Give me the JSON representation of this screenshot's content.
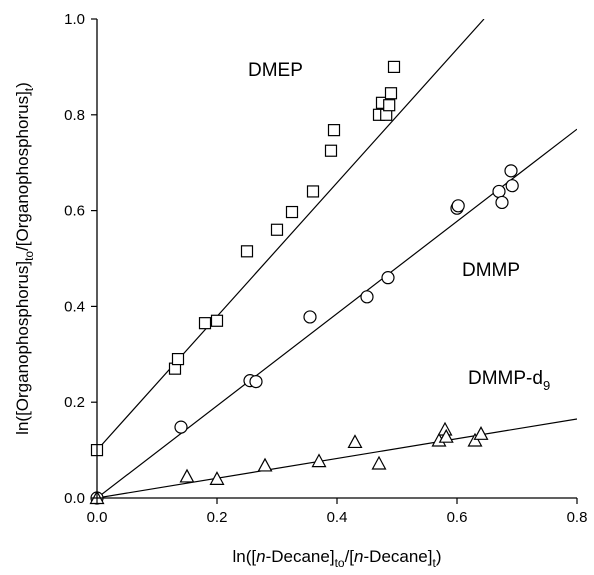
{
  "chart_data": {
    "type": "scatter",
    "xlabel": {
      "pre": "ln([",
      "italic": "n",
      "mid": "-Decane]",
      "sub1": "to",
      "mid2": "/[",
      "italic2": "n",
      "mid3": "-Decane]",
      "sub2": "t",
      "post": ")"
    },
    "ylabel": {
      "pre": "ln([Organophosphorus]",
      "sub1": "to",
      "mid": "/[Organophosphorus]",
      "sub2": "t",
      "post": ")"
    },
    "xlim": [
      0,
      0.8
    ],
    "ylim": [
      0,
      1.0
    ],
    "xticks": [
      0.0,
      0.2,
      0.4,
      0.6,
      0.8
    ],
    "xtick_labels": [
      "0.0",
      "0.2",
      "0.4",
      "0.6",
      "0.8"
    ],
    "yticks": [
      0.0,
      0.2,
      0.4,
      0.6,
      0.8,
      1.0
    ],
    "ytick_labels": [
      "0.0",
      "0.2",
      "0.4",
      "0.6",
      "0.8",
      "1.0"
    ],
    "grid": false,
    "series": [
      {
        "name": "DMEP",
        "label_text": "DMEP",
        "marker": "square",
        "fit": {
          "x": [
            0.0,
            0.645
          ],
          "y": [
            0.1,
            1.0
          ]
        },
        "points": [
          [
            0.0,
            0.1
          ],
          [
            0.13,
            0.27
          ],
          [
            0.135,
            0.29
          ],
          [
            0.18,
            0.365
          ],
          [
            0.2,
            0.37
          ],
          [
            0.25,
            0.515
          ],
          [
            0.3,
            0.56
          ],
          [
            0.325,
            0.597
          ],
          [
            0.36,
            0.64
          ],
          [
            0.39,
            0.725
          ],
          [
            0.395,
            0.768
          ],
          [
            0.47,
            0.8
          ],
          [
            0.475,
            0.825
          ],
          [
            0.482,
            0.8
          ],
          [
            0.487,
            0.82
          ],
          [
            0.49,
            0.845
          ],
          [
            0.495,
            0.9
          ]
        ]
      },
      {
        "name": "DMMP",
        "label_text": "DMMP",
        "marker": "circle",
        "fit": {
          "x": [
            0.0,
            0.8
          ],
          "y": [
            0.0,
            0.77
          ]
        },
        "points": [
          [
            0.0,
            0.0
          ],
          [
            0.14,
            0.148
          ],
          [
            0.255,
            0.245
          ],
          [
            0.265,
            0.243
          ],
          [
            0.355,
            0.378
          ],
          [
            0.45,
            0.42
          ],
          [
            0.485,
            0.46
          ],
          [
            0.6,
            0.605
          ],
          [
            0.602,
            0.61
          ],
          [
            0.67,
            0.64
          ],
          [
            0.675,
            0.617
          ],
          [
            0.69,
            0.683
          ],
          [
            0.692,
            0.652
          ]
        ]
      },
      {
        "name": "DMMP-d9",
        "label_text": "DMMP-d",
        "label_sub": "9",
        "marker": "triangle",
        "fit": {
          "x": [
            0.0,
            0.8
          ],
          "y": [
            0.0,
            0.165
          ]
        },
        "points": [
          [
            0.0,
            0.0
          ],
          [
            0.15,
            0.045
          ],
          [
            0.2,
            0.04
          ],
          [
            0.28,
            0.068
          ],
          [
            0.37,
            0.077
          ],
          [
            0.43,
            0.117
          ],
          [
            0.47,
            0.072
          ],
          [
            0.57,
            0.12
          ],
          [
            0.58,
            0.143
          ],
          [
            0.582,
            0.128
          ],
          [
            0.63,
            0.12
          ],
          [
            0.64,
            0.134
          ]
        ]
      }
    ],
    "colors": {
      "axis": "#000000",
      "marker_fill": "#ffffff",
      "line": "#000000"
    }
  }
}
